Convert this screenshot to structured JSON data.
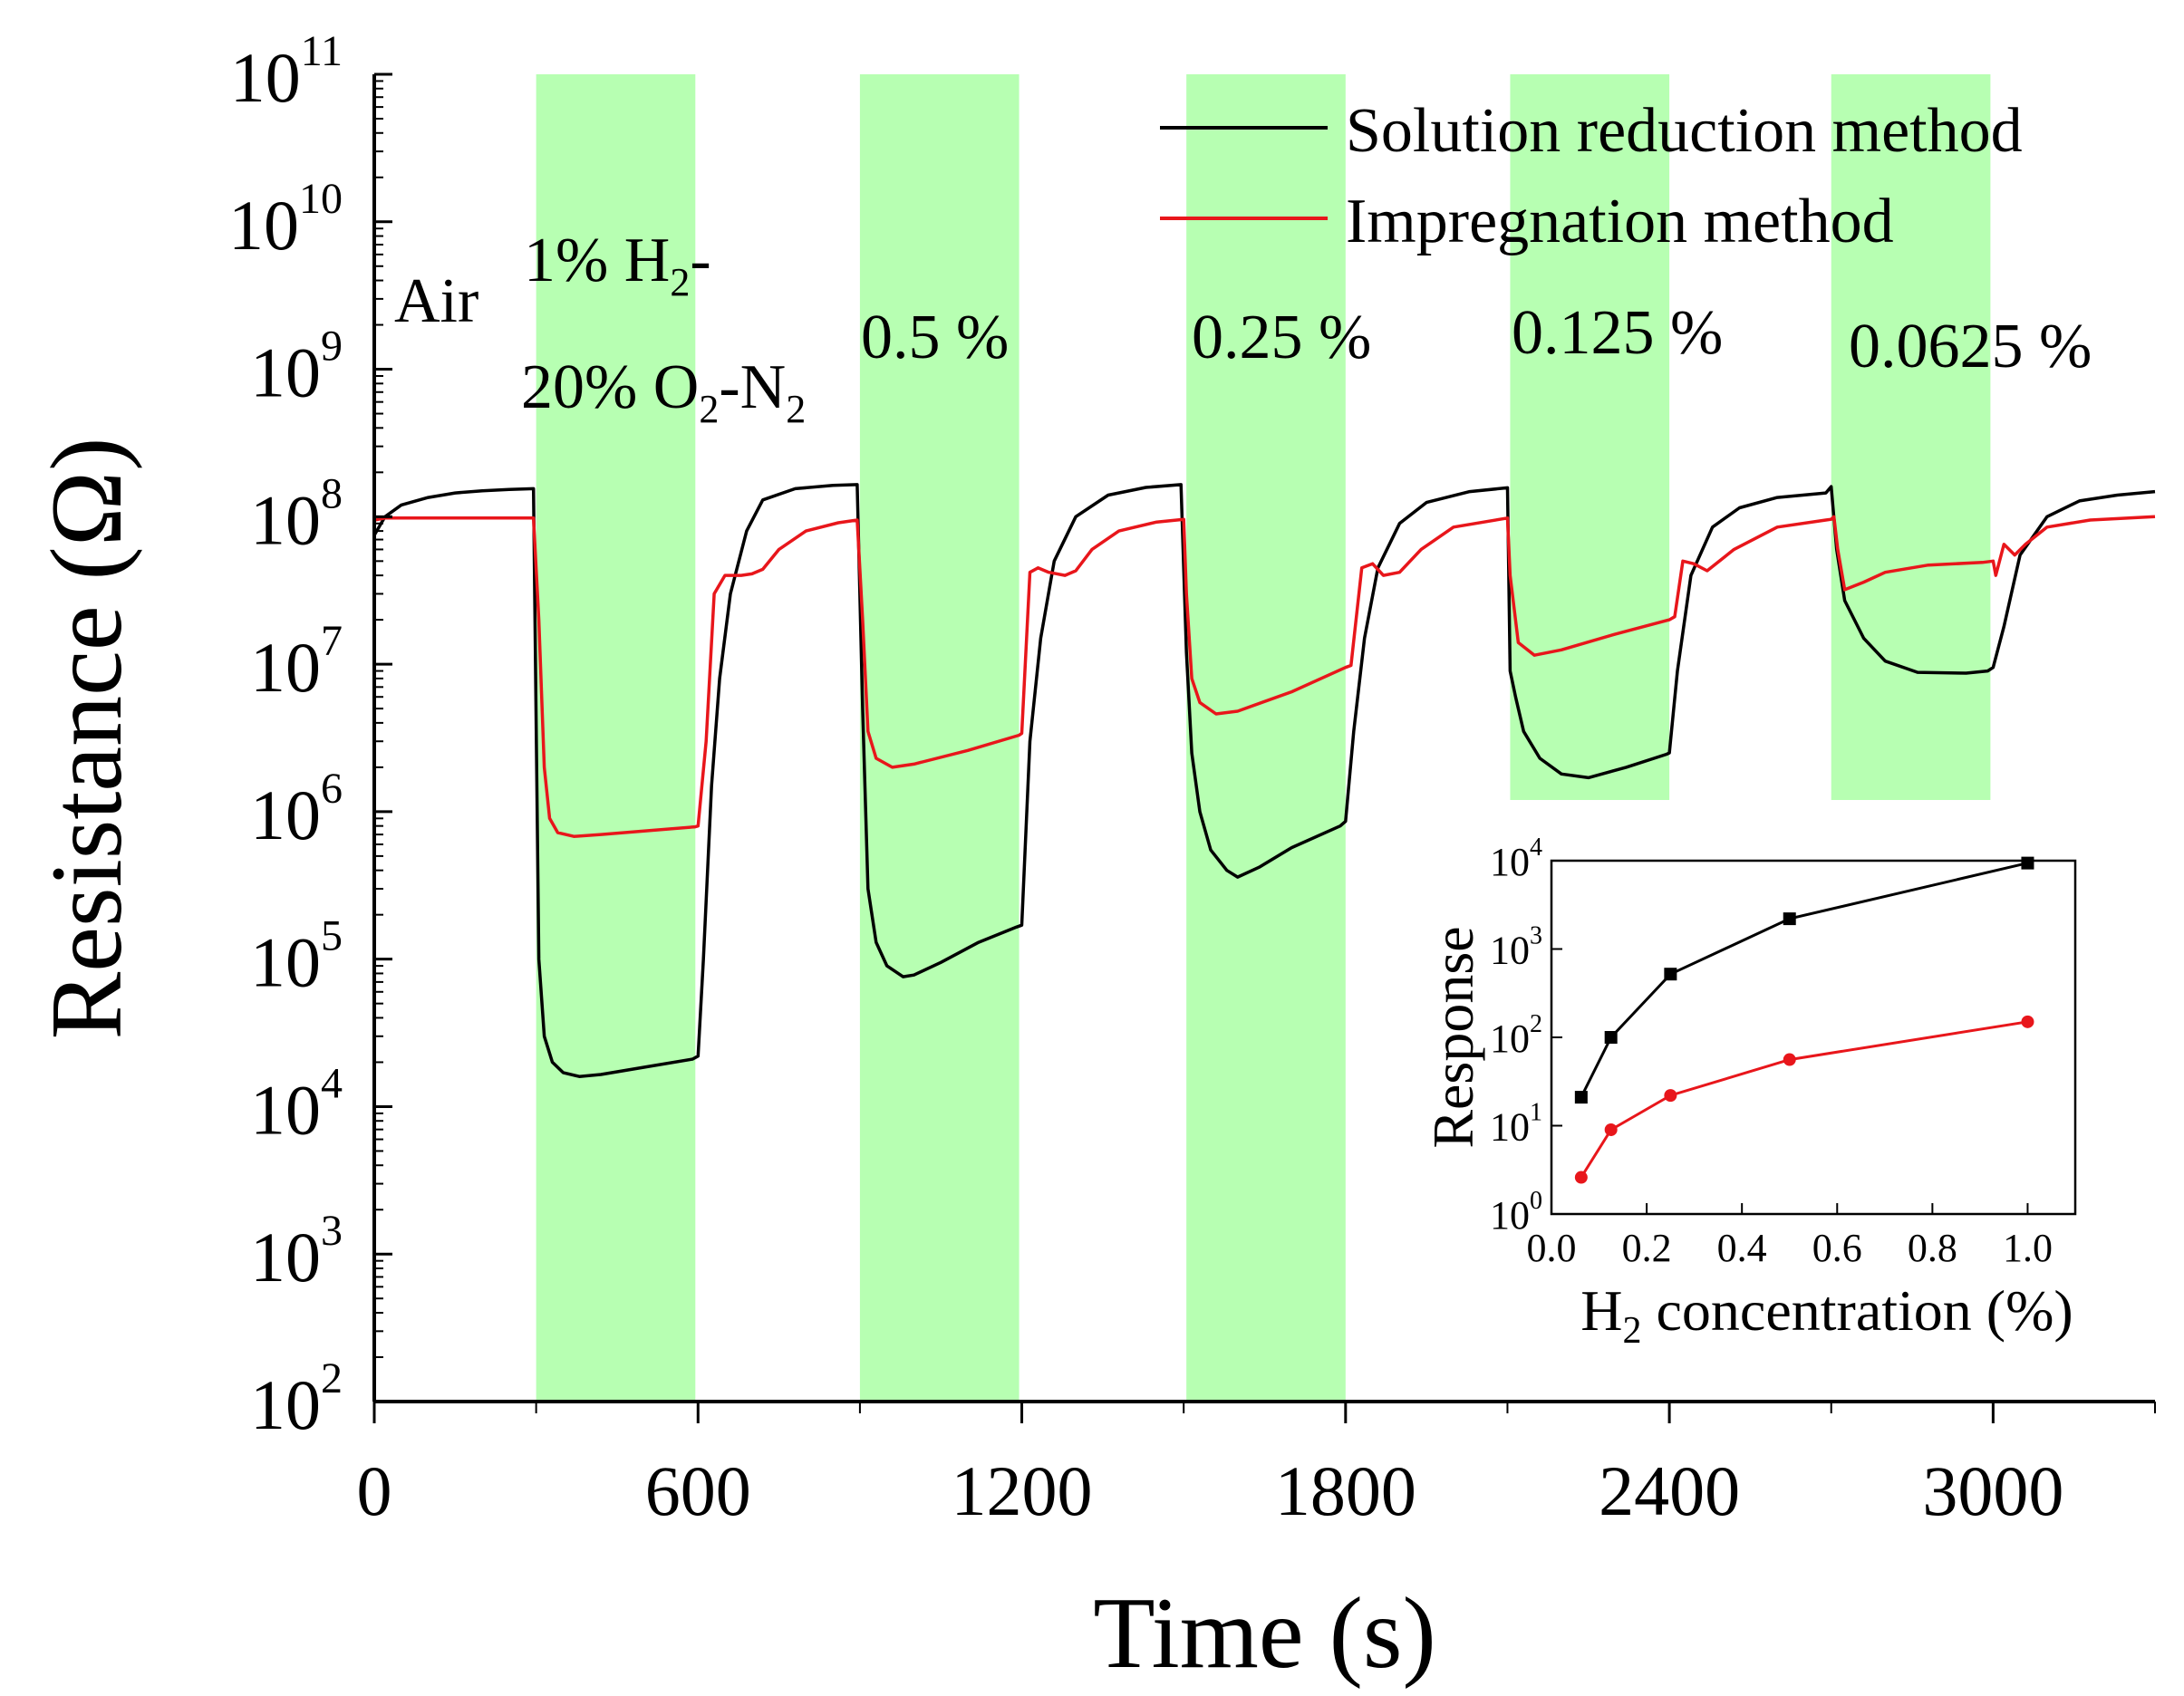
{
  "colors": {
    "solution": "#000000",
    "impregnation": "#e8161b",
    "band": "#b7ffb2",
    "axis": "#000000"
  },
  "chart_data": [
    {
      "type": "line",
      "name": "main",
      "xlabel": "Time (s)",
      "ylabel": "Resistance (Ω)",
      "xscale": "linear",
      "yscale": "log",
      "xlim": [
        0,
        3300
      ],
      "ylim": [
        100,
        100000000000
      ],
      "xticks": [
        0,
        600,
        1200,
        1800,
        2400,
        3000
      ],
      "xtick_labels": [
        "0",
        "600",
        "1200",
        "1800",
        "2400",
        "3000"
      ],
      "ytick_exponents": [
        2,
        3,
        4,
        5,
        6,
        7,
        8,
        9,
        10,
        11
      ],
      "ytick_base": "10",
      "legend_position": "top-right",
      "gas_periods": [
        {
          "start": 300,
          "end": 595,
          "concentration": 1.0,
          "label_line1": "1% H",
          "label_line1_sub": "2",
          "label_line1_tail": "-",
          "label_line2a": "20% O",
          "label_line2_sub1": "2",
          "label_line2b": "-N",
          "label_line2_sub2": "2"
        },
        {
          "start": 900,
          "end": 1195,
          "concentration": 0.5,
          "label": "0.5 %"
        },
        {
          "start": 1505,
          "end": 1800,
          "concentration": 0.25,
          "label": "0.25 %"
        },
        {
          "start": 2105,
          "end": 2400,
          "concentration": 0.125,
          "label": "0.125 %"
        },
        {
          "start": 2700,
          "end": 2995,
          "concentration": 0.0625,
          "label": "0.0625 %"
        }
      ],
      "air_label": "Air",
      "series": [
        {
          "name": "Solution reduction method",
          "color": "#000000",
          "x": [
            0,
            20,
            50,
            100,
            150,
            200,
            250,
            295,
            305,
            315,
            330,
            350,
            380,
            420,
            500,
            590,
            600,
            610,
            625,
            640,
            660,
            690,
            720,
            780,
            850,
            895,
            905,
            915,
            930,
            950,
            980,
            1000,
            1050,
            1120,
            1190,
            1200,
            1215,
            1235,
            1260,
            1300,
            1360,
            1430,
            1495,
            1505,
            1515,
            1530,
            1550,
            1580,
            1600,
            1640,
            1700,
            1790,
            1800,
            1815,
            1835,
            1860,
            1900,
            1950,
            2030,
            2100,
            2105,
            2115,
            2130,
            2160,
            2200,
            2250,
            2320,
            2395,
            2400,
            2415,
            2440,
            2480,
            2530,
            2600,
            2690,
            2700,
            2710,
            2725,
            2760,
            2800,
            2860,
            2950,
            2990,
            3000,
            3020,
            3050,
            3100,
            3160,
            3230,
            3300
          ],
          "y": [
            75000000,
            100000000,
            120000000,
            135000000,
            145000000,
            150000000,
            153000000,
            155000000,
            100000,
            30000,
            20000,
            17000,
            16000,
            16500,
            18500,
            21000,
            22000,
            100000,
            1500000,
            8000000,
            30000000,
            80000000,
            130000000,
            155000000,
            163000000,
            165000000,
            5000000,
            300000,
            130000,
            90000,
            76000,
            78000,
            95000,
            130000,
            165000,
            170000,
            3000000,
            15000000,
            50000000,
            100000000,
            140000000,
            158000000,
            165000000,
            12000000,
            2500000,
            1000000,
            550000,
            400000,
            360000,
            420000,
            570000,
            800000,
            860000,
            3500000,
            15000000,
            45000000,
            90000000,
            125000000,
            148000000,
            157000000,
            9000000,
            6000000,
            3500000,
            2300000,
            1800000,
            1700000,
            2000000,
            2450000,
            2500000,
            9000000,
            40000000,
            85000000,
            115000000,
            135000000,
            145000000,
            160000000,
            60000000,
            27000000,
            15000000,
            10500000,
            8800000,
            8700000,
            9000000,
            9500000,
            18000000,
            55000000,
            100000000,
            128000000,
            140000000,
            148000000
          ]
        },
        {
          "name": "Impregnation method",
          "color": "#e8161b",
          "x": [
            0,
            20,
            100,
            200,
            295,
            305,
            315,
            325,
            340,
            370,
            420,
            500,
            595,
            600,
            615,
            630,
            650,
            680,
            700,
            720,
            750,
            800,
            860,
            895,
            905,
            915,
            930,
            960,
            1000,
            1100,
            1195,
            1200,
            1215,
            1230,
            1250,
            1280,
            1300,
            1330,
            1380,
            1450,
            1500,
            1505,
            1515,
            1530,
            1560,
            1600,
            1700,
            1800,
            1810,
            1830,
            1850,
            1870,
            1900,
            1940,
            2000,
            2100,
            2105,
            2120,
            2150,
            2200,
            2300,
            2400,
            2410,
            2425,
            2445,
            2470,
            2520,
            2600,
            2690,
            2700,
            2705,
            2712,
            2725,
            2760,
            2800,
            2880,
            2980,
            3000,
            3005,
            3020,
            3040,
            3060,
            3100,
            3180,
            3300
          ],
          "y": [
            95000000,
            98000000,
            98000000,
            98000000,
            98000000,
            20000000,
            2000000,
            900000,
            720000,
            680000,
            700000,
            740000,
            790000,
            800000,
            3000000,
            30000000,
            40000000,
            40000000,
            41000000,
            44000000,
            60000000,
            80000000,
            91000000,
            95000000,
            20000000,
            3500000,
            2300000,
            2000000,
            2100000,
            2600000,
            3300000,
            3400000,
            42000000,
            45000000,
            42000000,
            40000000,
            43000000,
            60000000,
            80000000,
            92000000,
            96000000,
            30000000,
            8000000,
            5500000,
            4600000,
            4800000,
            6500000,
            9500000,
            9800000,
            45000000,
            48000000,
            40000000,
            42000000,
            60000000,
            85000000,
            98000000,
            40000000,
            14000000,
            11500000,
            12500000,
            16000000,
            20000000,
            21000000,
            50000000,
            48000000,
            43000000,
            60000000,
            85000000,
            95000000,
            96000000,
            100000000,
            60000000,
            32000000,
            36000000,
            42000000,
            47000000,
            49000000,
            50000000,
            40000000,
            65000000,
            55000000,
            65000000,
            85000000,
            95000000,
            100000000
          ]
        }
      ]
    },
    {
      "type": "line",
      "name": "inset",
      "xlabel_main": "H",
      "xlabel_sub": "2",
      "xlabel_rest": " concentration (%)",
      "ylabel": "Response",
      "xscale": "linear",
      "yscale": "log",
      "xlim": [
        0.0,
        1.1
      ],
      "ylim": [
        1,
        10000
      ],
      "xticks": [
        0.0,
        0.2,
        0.4,
        0.6,
        0.8,
        1.0
      ],
      "xtick_labels": [
        "0.0",
        "0.2",
        "0.4",
        "0.6",
        "0.8",
        "1.0"
      ],
      "ytick_exponents": [
        0,
        1,
        2,
        3,
        4
      ],
      "ytick_base": "10",
      "series": [
        {
          "name": "Solution reduction method",
          "color": "#000000",
          "marker": "square",
          "x": [
            0.0625,
            0.125,
            0.25,
            0.5,
            1.0
          ],
          "y": [
            21,
            100,
            520,
            2200,
            9400
          ]
        },
        {
          "name": "Impregnation method",
          "color": "#e8161b",
          "marker": "circle",
          "x": [
            0.0625,
            0.125,
            0.25,
            0.5,
            1.0
          ],
          "y": [
            2.6,
            9,
            22,
            56,
            150
          ]
        }
      ]
    }
  ]
}
